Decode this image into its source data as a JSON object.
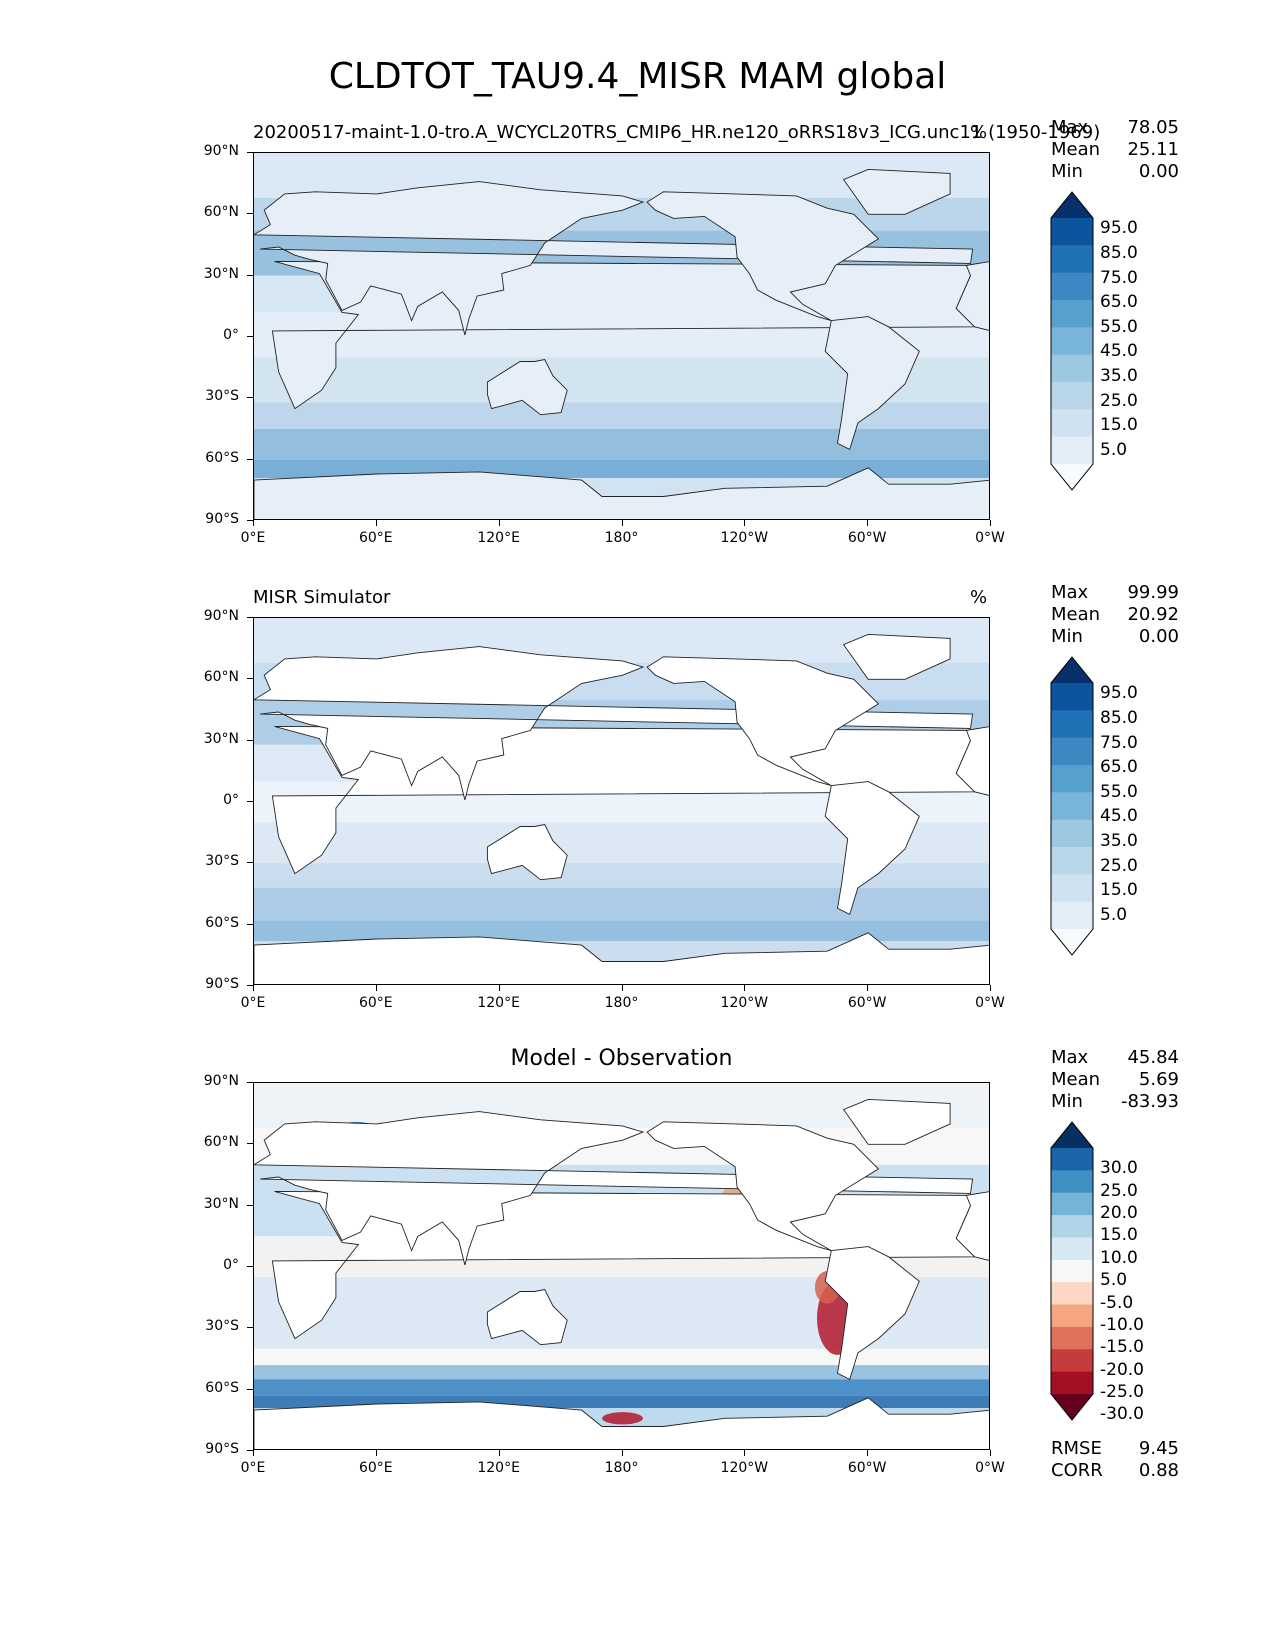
{
  "figure": {
    "title": "CLDTOT_TAU9.4_MISR MAM global"
  },
  "axes": {
    "lat_ticks": [
      "90°N",
      "60°N",
      "30°N",
      "0°",
      "30°S",
      "60°S",
      "90°S"
    ],
    "lon_ticks": [
      "0°E",
      "60°E",
      "120°E",
      "180°",
      "120°W",
      "60°W",
      "0°W"
    ]
  },
  "panels": [
    {
      "left_title": "20200517-maint-1.0-tro.A_WCYCL20TRS_CMIP6_HR.ne120_oRRS18v3_ICG.unc11 (1950-1969)",
      "center_title": "",
      "units": "%",
      "stats": [
        {
          "label": "Max",
          "value": "78.05"
        },
        {
          "label": "Mean",
          "value": "25.11"
        },
        {
          "label": "Min",
          "value": "0.00"
        }
      ],
      "colorbar": {
        "labels": [
          "95.0",
          "85.0",
          "75.0",
          "65.0",
          "55.0",
          "45.0",
          "35.0",
          "25.0",
          "15.0",
          "5.0"
        ],
        "colors": [
          "#f7fbff",
          "#e3eef9",
          "#d0e2f2",
          "#b9d6eb",
          "#9cc9e1",
          "#78b5d9",
          "#56a0ce",
          "#3c88c0",
          "#2171b5",
          "#0b559f",
          "#08306b"
        ]
      }
    },
    {
      "left_title": "MISR Simulator",
      "center_title": "",
      "units": "%",
      "stats": [
        {
          "label": "Max",
          "value": "99.99"
        },
        {
          "label": "Mean",
          "value": "20.92"
        },
        {
          "label": "Min",
          "value": "0.00"
        }
      ],
      "colorbar": {
        "labels": [
          "95.0",
          "85.0",
          "75.0",
          "65.0",
          "55.0",
          "45.0",
          "35.0",
          "25.0",
          "15.0",
          "5.0"
        ],
        "colors": [
          "#f7fbff",
          "#e3eef9",
          "#d0e2f2",
          "#b9d6eb",
          "#9cc9e1",
          "#78b5d9",
          "#56a0ce",
          "#3c88c0",
          "#2171b5",
          "#0b559f",
          "#08306b"
        ]
      }
    },
    {
      "left_title": "",
      "center_title": "Model - Observation",
      "units": "",
      "stats": [
        {
          "label": "Max",
          "value": "45.84"
        },
        {
          "label": "Mean",
          "value": "5.69"
        },
        {
          "label": "Min",
          "value": "-83.93"
        }
      ],
      "metrics": [
        {
          "label": "RMSE",
          "value": "9.45"
        },
        {
          "label": "CORR",
          "value": "0.88"
        }
      ],
      "colorbar": {
        "labels": [
          "30.0",
          "25.0",
          "20.0",
          "15.0",
          "10.0",
          "5.0",
          "-5.0",
          "-10.0",
          "-15.0",
          "-20.0",
          "-25.0",
          "-30.0"
        ],
        "colors": [
          "#67001f",
          "#a50f26",
          "#c43c3c",
          "#e0715a",
          "#f4a582",
          "#fbd7c4",
          "#f7f7f7",
          "#d6e8f2",
          "#b0d5e8",
          "#75b4d6",
          "#4090c3",
          "#1c64a8",
          "#053061"
        ]
      }
    }
  ]
}
